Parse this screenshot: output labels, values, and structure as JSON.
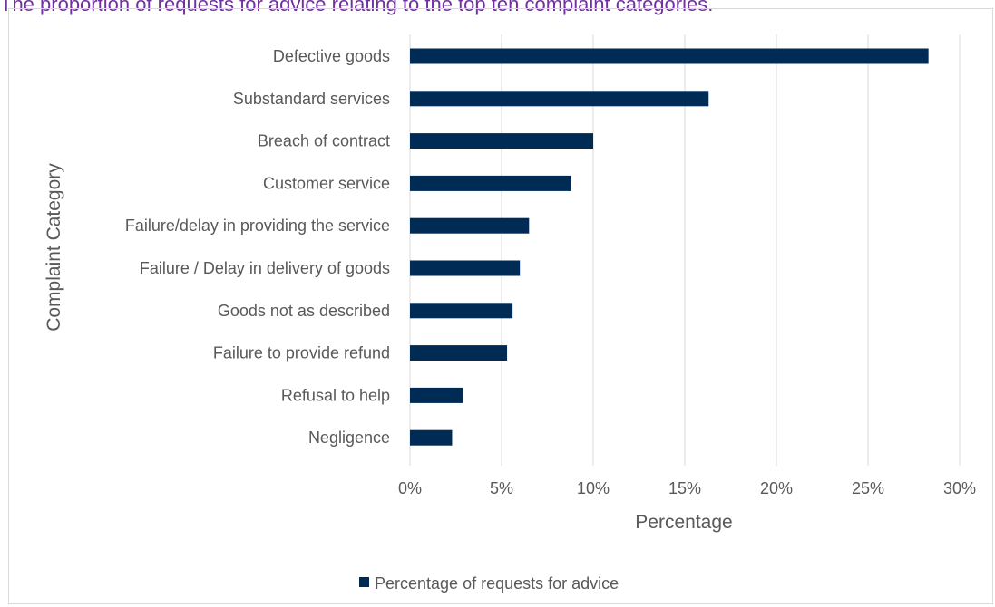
{
  "page": {
    "title": "The proportion of requests for advice relating to the top ten complaint categories."
  },
  "chart_data": {
    "type": "bar",
    "orientation": "horizontal",
    "categories": [
      "Defective goods",
      "Substandard services",
      "Breach of contract",
      "Customer service",
      "Failure/delay in providing the service",
      "Failure / Delay in delivery of goods",
      "Goods not as described",
      "Failure to provide refund",
      "Refusal to help",
      "Negligence"
    ],
    "series": [
      {
        "name": "Percentage of requests for advice",
        "values": [
          28.3,
          16.3,
          10.0,
          8.8,
          6.5,
          6.0,
          5.6,
          5.3,
          2.9,
          2.3
        ],
        "color": "#002b55"
      }
    ],
    "xlim": [
      0,
      30
    ],
    "xticks": [
      "0%",
      "5%",
      "10%",
      "15%",
      "20%",
      "25%",
      "30%"
    ],
    "xtick_values": [
      0,
      5,
      10,
      15,
      20,
      25,
      30
    ],
    "xlabel": "Percentage",
    "ylabel": "Complaint Category",
    "grid": "vertical",
    "legend": "bottom-center"
  }
}
